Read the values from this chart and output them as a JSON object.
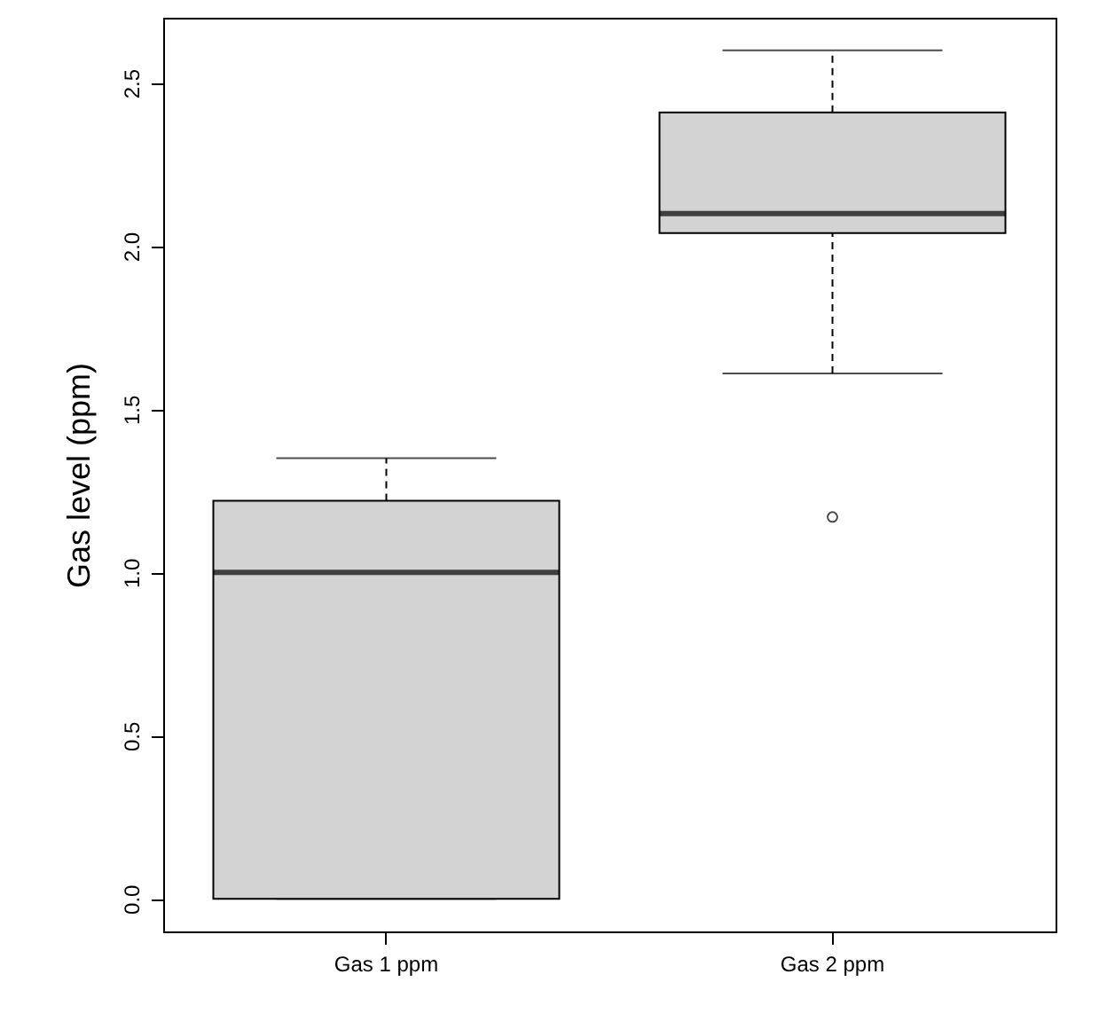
{
  "chart_data": {
    "type": "box",
    "ylabel": "Gas level (ppm)",
    "categories": [
      "Gas 1 ppm",
      "Gas 2 ppm"
    ],
    "color": "#d3d3d3",
    "boxes": [
      {
        "low": 0,
        "q1": 0,
        "median": 1.0,
        "q3": 1.22,
        "high": 1.35
      },
      {
        "low": 1.61,
        "q1": 2.04,
        "median": 2.1,
        "q3": 2.41,
        "high": 2.6,
        "outliers": [
          1.17
        ]
      }
    ],
    "ylim": [
      -0.1,
      2.7
    ],
    "yticks": [
      {
        "value": 0,
        "label": "0.0"
      },
      {
        "value": 0.5,
        "label": "0.5"
      },
      {
        "value": 1,
        "label": "1.0"
      },
      {
        "value": 1.5,
        "label": "1.5"
      },
      {
        "value": 2,
        "label": "2.0"
      },
      {
        "value": 2.5,
        "label": "2.5"
      }
    ],
    "grid": false
  }
}
